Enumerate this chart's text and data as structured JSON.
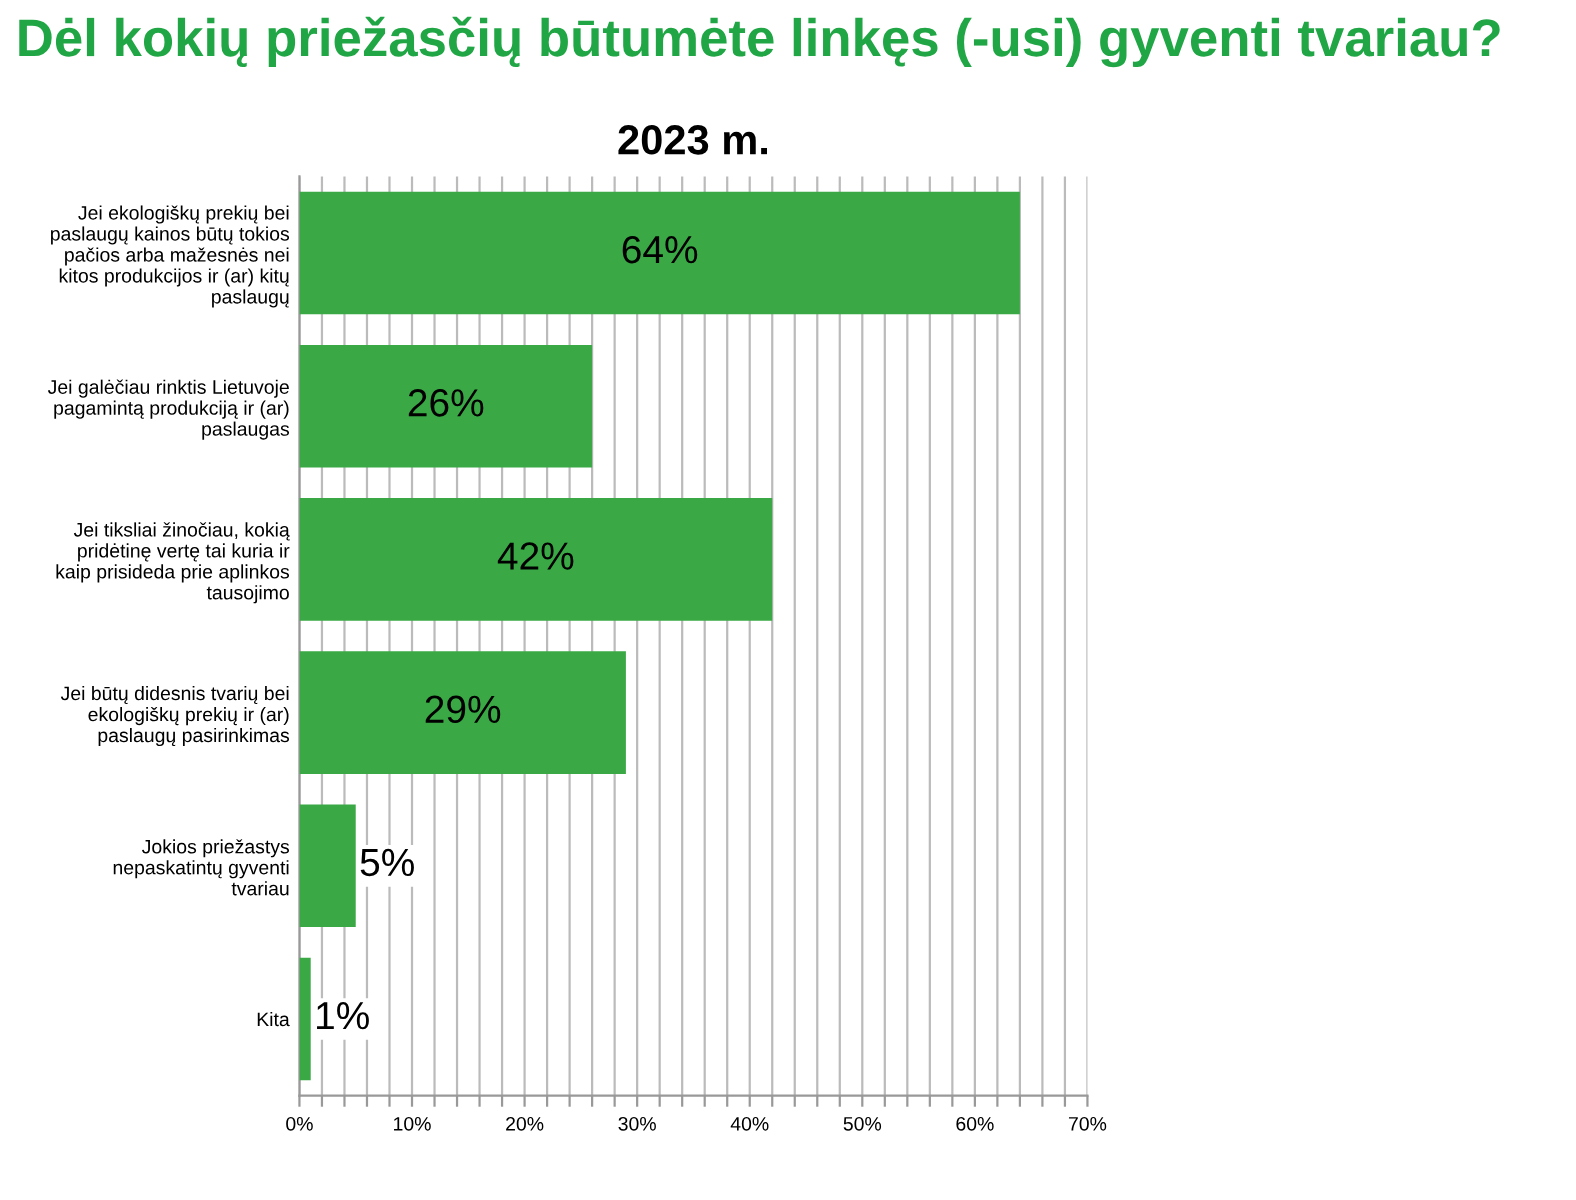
{
  "chart_data": {
    "type": "bar",
    "orientation": "horizontal",
    "title": "Dėl kokių priežasčių būtumėte linkęs (-usi) gyventi tvariau?",
    "subtitle": "2023 m.",
    "categories": [
      "Jei ekologiškų prekių bei\npaslaugų kainos būtų tokios\npačios arba mažesnės nei\nkitos produkcijos ir (ar) kitų\npaslaugų",
      "Jei galėčiau rinktis Lietuvoje\npagamintą produkciją ir (ar)\npaslaugas",
      "Jei tiksliai žinočiau, kokią\npridėtinę vertę tai kuria ir\nkaip prisideda prie aplinkos\ntausojimo",
      "Jei būtų didesnis tvarių bei\nekologiškų prekių ir (ar)\npaslaugų pasirinkimas",
      "Jokios priežastys\nnepaskatintų gyventi\ntvariau",
      "Kita"
    ],
    "values": [
      64,
      26,
      42,
      29,
      5,
      1
    ],
    "value_labels": [
      "64%",
      "26%",
      "42%",
      "29%",
      "5%",
      "1%"
    ],
    "color": "#39a845",
    "xlim": [
      0,
      70
    ],
    "xticks": [
      {
        "value": 0,
        "label": "0%"
      },
      {
        "value": 2,
        "label": null
      },
      {
        "value": 4,
        "label": null
      },
      {
        "value": 6,
        "label": null
      },
      {
        "value": 8,
        "label": null
      },
      {
        "value": 10,
        "label": "10%"
      },
      {
        "value": 12,
        "label": null
      },
      {
        "value": 14,
        "label": null
      },
      {
        "value": 16,
        "label": null
      },
      {
        "value": 18,
        "label": null
      },
      {
        "value": 20,
        "label": "20%"
      },
      {
        "value": 22,
        "label": null
      },
      {
        "value": 24,
        "label": null
      },
      {
        "value": 26,
        "label": null
      },
      {
        "value": 28,
        "label": null
      },
      {
        "value": 30,
        "label": "30%"
      },
      {
        "value": 32,
        "label": null
      },
      {
        "value": 34,
        "label": null
      },
      {
        "value": 36,
        "label": null
      },
      {
        "value": 38,
        "label": null
      },
      {
        "value": 40,
        "label": "40%"
      },
      {
        "value": 42,
        "label": null
      },
      {
        "value": 44,
        "label": null
      },
      {
        "value": 46,
        "label": null
      },
      {
        "value": 48,
        "label": null
      },
      {
        "value": 50,
        "label": "50%"
      },
      {
        "value": 52,
        "label": null
      },
      {
        "value": 54,
        "label": null
      },
      {
        "value": 56,
        "label": null
      },
      {
        "value": 58,
        "label": null
      },
      {
        "value": 60,
        "label": "60%"
      },
      {
        "value": 62,
        "label": null
      },
      {
        "value": 64,
        "label": null
      },
      {
        "value": 66,
        "label": null
      },
      {
        "value": 68,
        "label": null
      },
      {
        "value": 70,
        "label": "70%"
      }
    ],
    "grid": "x",
    "legend": false
  }
}
